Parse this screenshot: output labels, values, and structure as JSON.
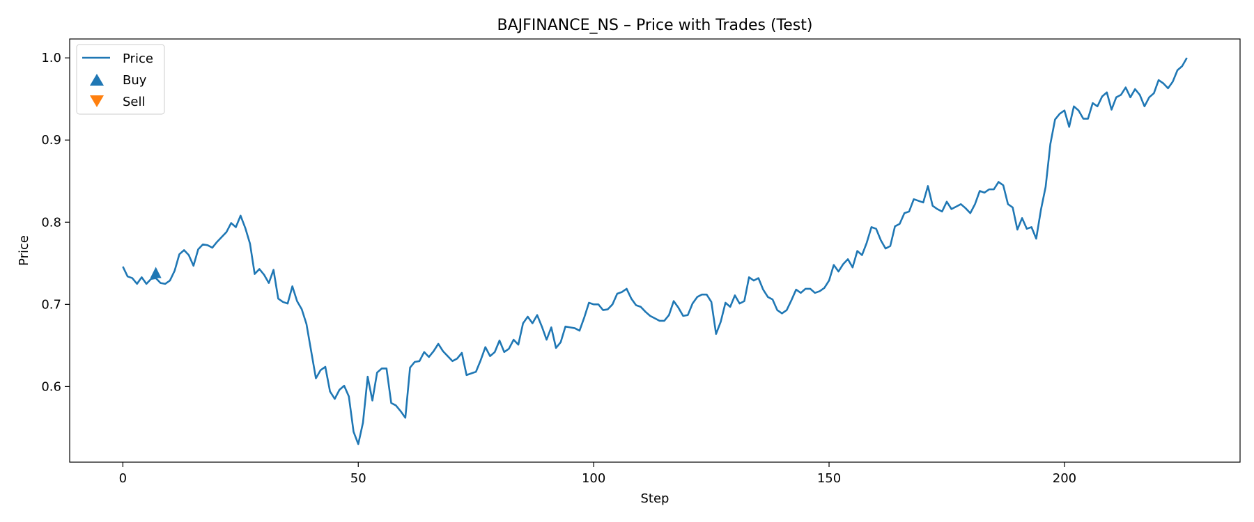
{
  "chart_data": {
    "type": "line",
    "title": "BAJFINANCE_NS – Price with Trades (Test)",
    "xlabel": "Step",
    "ylabel": "Price",
    "xlim": [
      -11.3,
      237.3
    ],
    "ylim": [
      0.508,
      1.023
    ],
    "xticks": [
      0,
      50,
      100,
      150,
      200
    ],
    "xtick_labels": [
      "0",
      "50",
      "100",
      "150",
      "200"
    ],
    "yticks": [
      0.6,
      0.7,
      0.8,
      0.9,
      1.0
    ],
    "ytick_labels": [
      "0.6",
      "0.7",
      "0.8",
      "0.9",
      "1.0"
    ],
    "legend": {
      "placement": "top-left",
      "entries": [
        {
          "label": "Price",
          "marker": "line"
        },
        {
          "label": "Buy",
          "marker": "triangle-up"
        },
        {
          "label": "Sell",
          "marker": "triangle-down"
        }
      ]
    },
    "colors": {
      "price": "#1f77b4",
      "buy": "#1f77b4",
      "sell": "#ff7f0e"
    },
    "series": [
      {
        "name": "Price",
        "values": [
          0.746,
          0.734,
          0.732,
          0.725,
          0.733,
          0.725,
          0.731,
          0.732,
          0.726,
          0.725,
          0.729,
          0.741,
          0.761,
          0.766,
          0.76,
          0.747,
          0.767,
          0.773,
          0.772,
          0.769,
          0.776,
          0.782,
          0.788,
          0.799,
          0.794,
          0.808,
          0.793,
          0.774,
          0.737,
          0.743,
          0.736,
          0.726,
          0.742,
          0.707,
          0.703,
          0.701,
          0.722,
          0.704,
          0.694,
          0.676,
          0.643,
          0.61,
          0.62,
          0.624,
          0.594,
          0.585,
          0.596,
          0.601,
          0.588,
          0.545,
          0.53,
          0.556,
          0.612,
          0.583,
          0.617,
          0.622,
          0.622,
          0.58,
          0.577,
          0.57,
          0.562,
          0.623,
          0.63,
          0.631,
          0.642,
          0.636,
          0.643,
          0.652,
          0.643,
          0.637,
          0.631,
          0.634,
          0.641,
          0.614,
          0.616,
          0.618,
          0.632,
          0.648,
          0.637,
          0.642,
          0.656,
          0.642,
          0.646,
          0.657,
          0.651,
          0.677,
          0.685,
          0.677,
          0.687,
          0.673,
          0.657,
          0.672,
          0.647,
          0.654,
          0.673,
          0.672,
          0.671,
          0.668,
          0.684,
          0.702,
          0.7,
          0.7,
          0.693,
          0.694,
          0.7,
          0.713,
          0.715,
          0.719,
          0.707,
          0.699,
          0.697,
          0.691,
          0.686,
          0.683,
          0.68,
          0.68,
          0.687,
          0.704,
          0.696,
          0.686,
          0.687,
          0.701,
          0.709,
          0.712,
          0.712,
          0.703,
          0.664,
          0.679,
          0.702,
          0.697,
          0.711,
          0.701,
          0.704,
          0.733,
          0.729,
          0.732,
          0.718,
          0.709,
          0.706,
          0.693,
          0.689,
          0.693,
          0.705,
          0.718,
          0.714,
          0.719,
          0.719,
          0.714,
          0.716,
          0.72,
          0.729,
          0.748,
          0.74,
          0.749,
          0.755,
          0.745,
          0.765,
          0.76,
          0.775,
          0.794,
          0.792,
          0.778,
          0.768,
          0.771,
          0.795,
          0.798,
          0.811,
          0.813,
          0.828,
          0.826,
          0.824,
          0.844,
          0.82,
          0.816,
          0.813,
          0.825,
          0.816,
          0.819,
          0.822,
          0.817,
          0.811,
          0.822,
          0.838,
          0.836,
          0.84,
          0.84,
          0.849,
          0.845,
          0.822,
          0.818,
          0.791,
          0.805,
          0.792,
          0.794,
          0.78,
          0.815,
          0.843,
          0.895,
          0.925,
          0.932,
          0.936,
          0.916,
          0.941,
          0.936,
          0.926,
          0.926,
          0.945,
          0.941,
          0.953,
          0.958,
          0.937,
          0.952,
          0.955,
          0.964,
          0.952,
          0.962,
          0.955,
          0.941,
          0.952,
          0.957,
          0.973,
          0.969,
          0.963,
          0.971,
          0.985,
          0.99,
          1.0
        ]
      }
    ],
    "trades": {
      "buy": [
        {
          "x": 7,
          "y": 0.738
        }
      ],
      "sell": []
    }
  }
}
